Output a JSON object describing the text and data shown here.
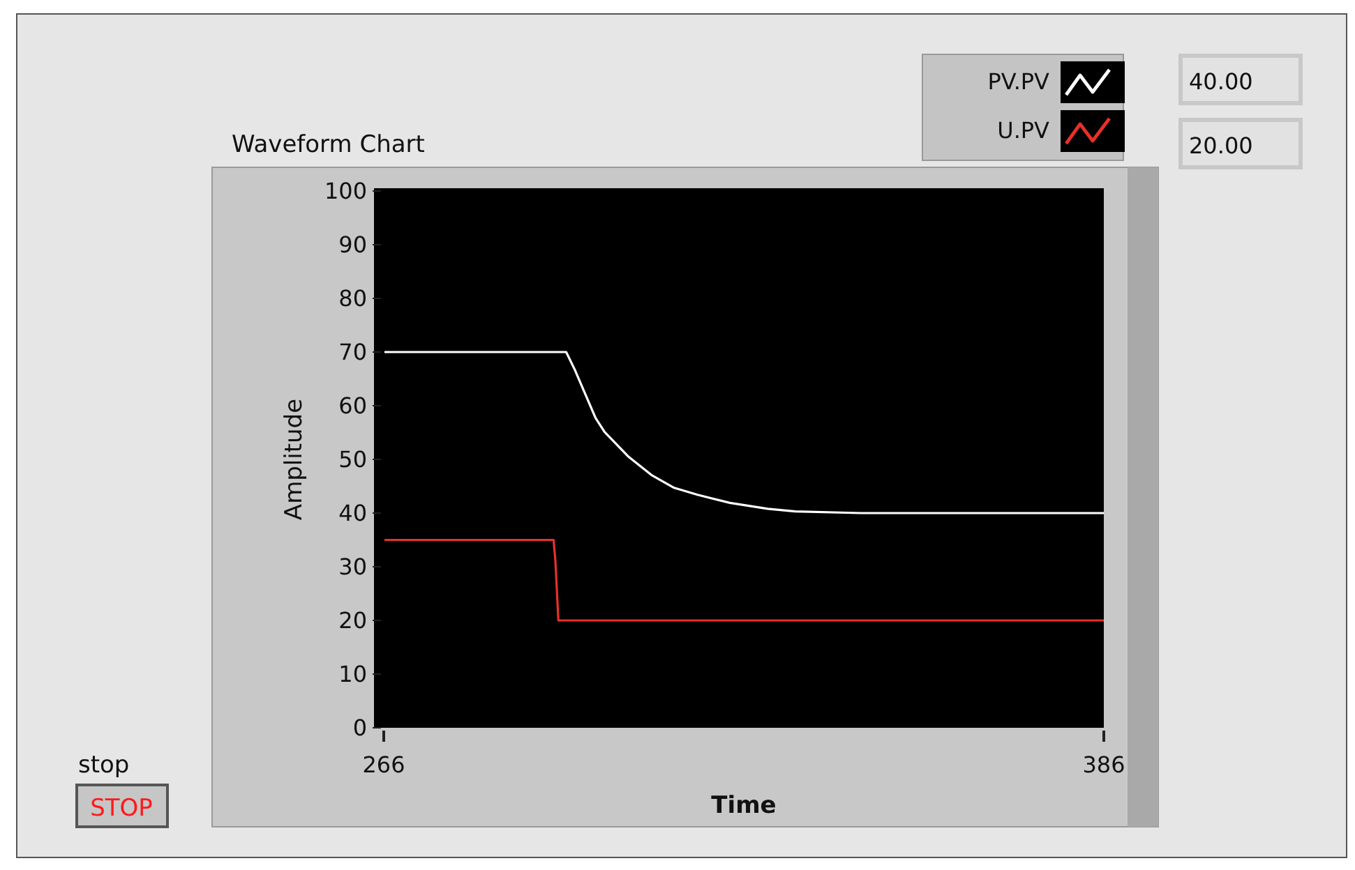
{
  "chart_data": {
    "type": "line",
    "title": "Waveform Chart",
    "xlabel": "Time",
    "ylabel": "Amplitude",
    "xlim": [
      266,
      386
    ],
    "xticks": [
      266,
      386
    ],
    "ylim": [
      0,
      100
    ],
    "yticks": [
      0,
      10,
      20,
      30,
      40,
      50,
      60,
      70,
      80,
      90,
      100
    ],
    "grid": false,
    "legend": "top right",
    "marker": "none",
    "line_style": "solid",
    "series": [
      {
        "name": "PV.PV",
        "color": "#ffffff",
        "x": [
          266,
          296.4,
          297.8,
          301.3,
          302.8,
          306.7,
          310.6,
          314.4,
          318.3,
          323.7,
          330,
          334.6,
          345.5,
          386
        ],
        "values": [
          70,
          70,
          66.8,
          57.7,
          55.1,
          50.6,
          47.1,
          44.7,
          43.4,
          41.9,
          40.8,
          40.3,
          40,
          40
        ]
      },
      {
        "name": "U.PV",
        "color": "#e8302a",
        "x": [
          266,
          294.3,
          294.6,
          295.1,
          386
        ],
        "values": [
          35,
          35,
          31.2,
          20,
          20
        ]
      }
    ],
    "annotations": [
      "40.00",
      "20.00",
      "stop",
      "STOP"
    ]
  }
}
